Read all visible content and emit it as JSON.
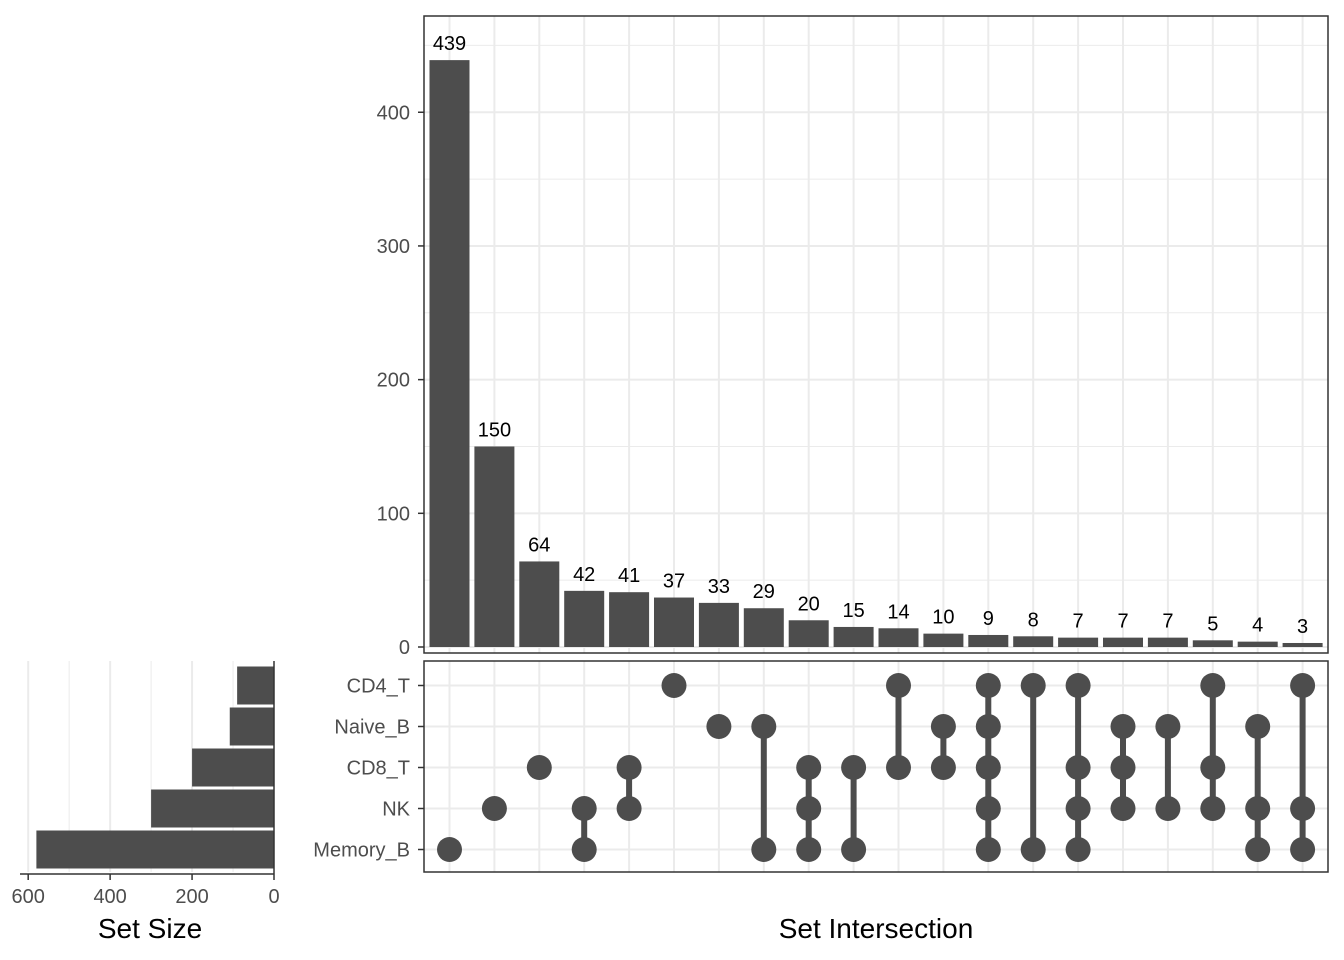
{
  "chart_data": {
    "type": "upset",
    "title": "",
    "colors": {
      "bar": "#4d4d4d",
      "dot": "#4d4d4d",
      "grid": "#ebebeb",
      "panel_border": "#333333",
      "tick_text": "#4d4d4d"
    },
    "sets": [
      "CD4_T",
      "Naive_B",
      "CD8_T",
      "NK",
      "Memory_B"
    ],
    "set_sizes": {
      "values": [
        90,
        108,
        200,
        300,
        580
      ],
      "xlabel": "Set Size",
      "ticks": [
        600,
        400,
        200,
        0
      ],
      "xlim": [
        0,
        620
      ]
    },
    "intersections": {
      "xlabel": "Set Intersection",
      "ylabel": "",
      "ylim": [
        0,
        472
      ],
      "yticks": [
        0,
        100,
        200,
        300,
        400
      ],
      "values": [
        439,
        150,
        64,
        42,
        41,
        37,
        33,
        29,
        20,
        15,
        14,
        10,
        9,
        8,
        7,
        7,
        7,
        5,
        4,
        3
      ],
      "members": [
        [
          "Memory_B"
        ],
        [
          "NK"
        ],
        [
          "CD8_T"
        ],
        [
          "NK",
          "Memory_B"
        ],
        [
          "CD8_T",
          "NK"
        ],
        [
          "CD4_T"
        ],
        [
          "Naive_B"
        ],
        [
          "Naive_B",
          "Memory_B"
        ],
        [
          "CD8_T",
          "NK",
          "Memory_B"
        ],
        [
          "CD8_T",
          "Memory_B"
        ],
        [
          "CD4_T",
          "CD8_T"
        ],
        [
          "Naive_B",
          "CD8_T"
        ],
        [
          "CD4_T",
          "Naive_B",
          "CD8_T",
          "NK",
          "Memory_B"
        ],
        [
          "CD4_T",
          "Memory_B"
        ],
        [
          "CD4_T",
          "CD8_T",
          "NK",
          "Memory_B"
        ],
        [
          "Naive_B",
          "CD8_T",
          "NK"
        ],
        [
          "Naive_B",
          "NK"
        ],
        [
          "CD4_T",
          "CD8_T",
          "NK"
        ],
        [
          "Naive_B",
          "NK",
          "Memory_B"
        ],
        [
          "CD4_T",
          "NK",
          "Memory_B"
        ]
      ]
    }
  }
}
